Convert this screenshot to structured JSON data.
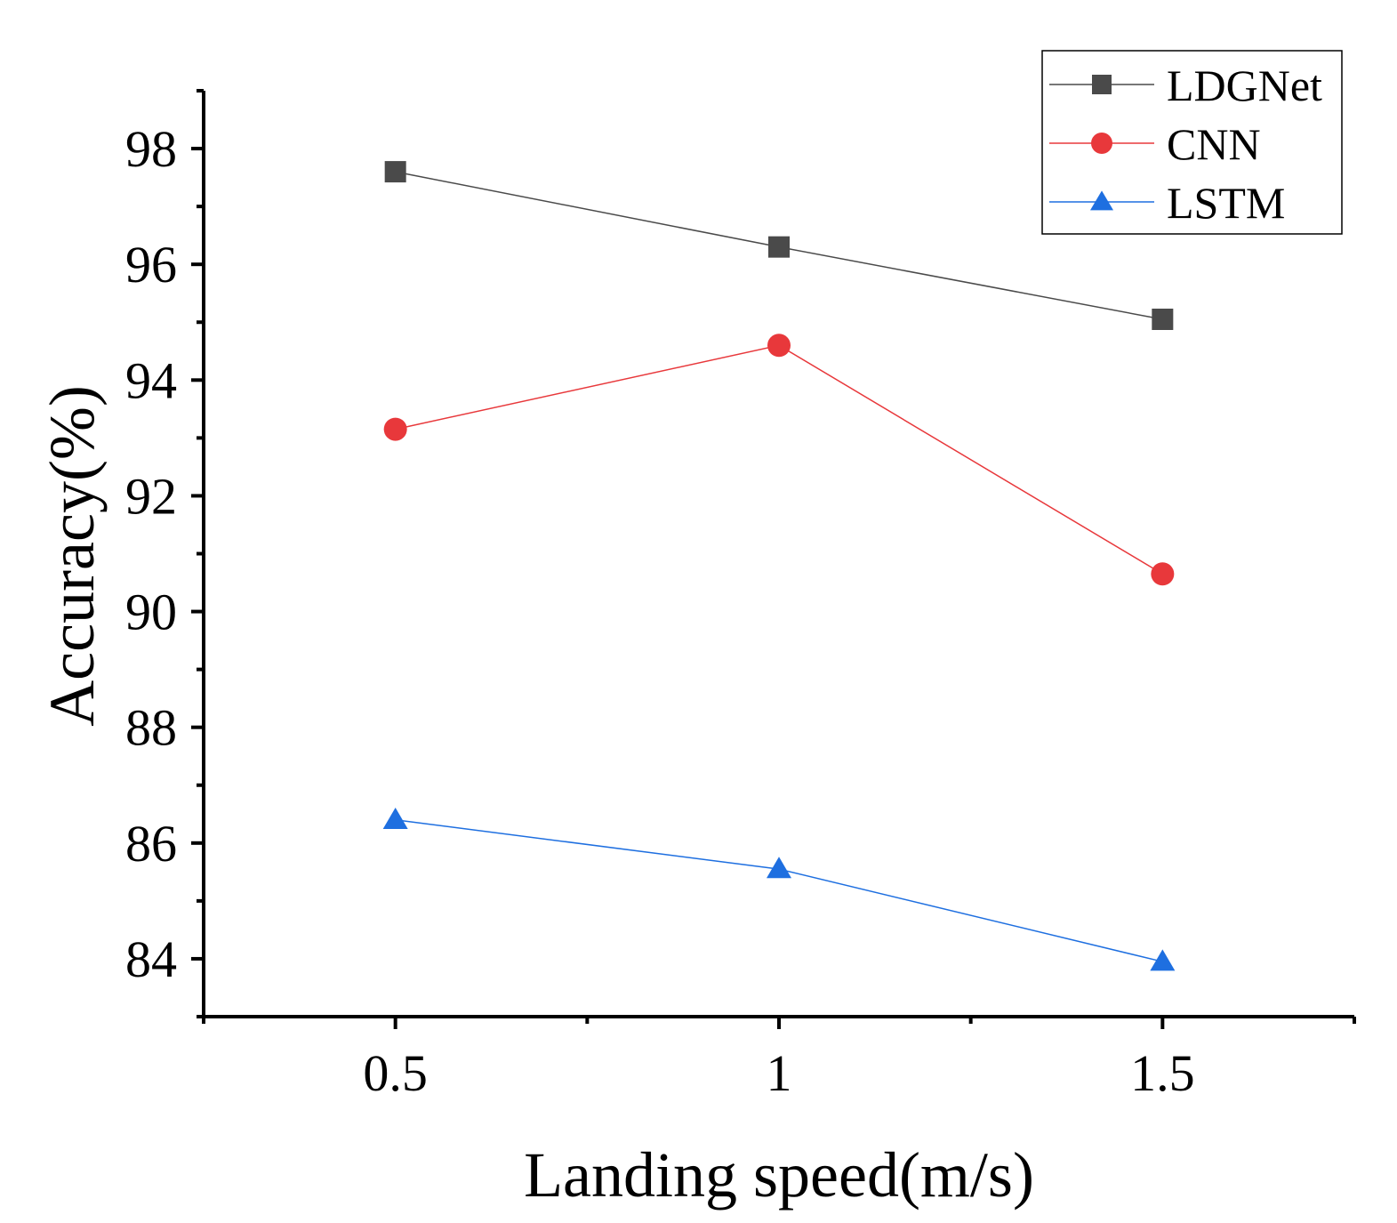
{
  "chart_data": {
    "type": "line",
    "title": "",
    "xlabel": "Landing speed(m/s)",
    "ylabel": "Accuracy(%)",
    "xlim": [
      0.25,
      1.75
    ],
    "ylim": [
      83,
      99
    ],
    "x_ticks": [
      0.5,
      1,
      1.5
    ],
    "x_tick_labels": [
      "0.5",
      "1",
      "1.5"
    ],
    "y_ticks": [
      84,
      86,
      88,
      90,
      92,
      94,
      96,
      98
    ],
    "y_tick_labels": [
      "84",
      "86",
      "88",
      "90",
      "92",
      "94",
      "96",
      "98"
    ],
    "grid": false,
    "legend_position": "top-right",
    "x": [
      0.5,
      1,
      1.5
    ],
    "series": [
      {
        "name": "LDGNet",
        "values": [
          97.6,
          96.3,
          95.05
        ],
        "color": "#4a4a4a",
        "marker": "square"
      },
      {
        "name": "CNN",
        "values": [
          93.15,
          94.6,
          90.65
        ],
        "color": "#e8383b",
        "marker": "circle"
      },
      {
        "name": "LSTM",
        "values": [
          86.4,
          85.55,
          83.95
        ],
        "color": "#1e6fe0",
        "marker": "triangle"
      }
    ]
  }
}
